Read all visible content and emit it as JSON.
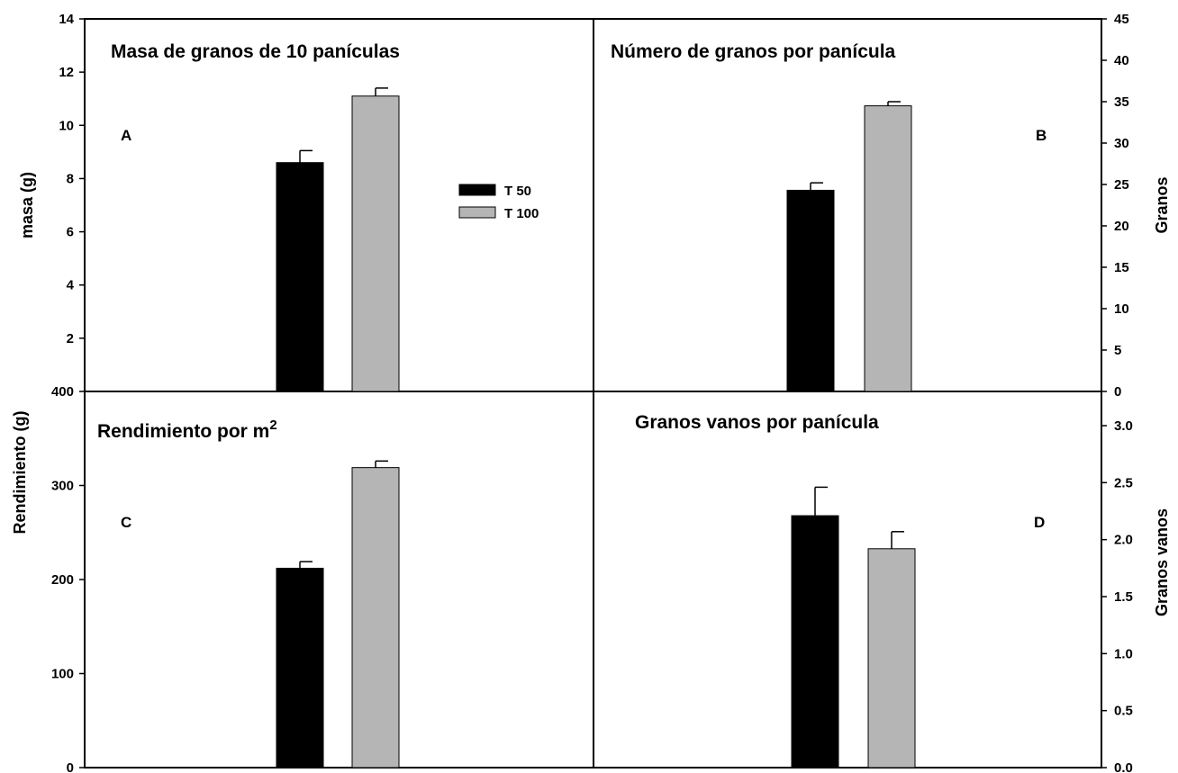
{
  "legend": {
    "items": [
      {
        "label": "T 50",
        "color": "#000000"
      },
      {
        "label": "T 100",
        "color": "#b5b5b5"
      }
    ]
  },
  "chart_data": [
    {
      "type": "bar",
      "panel": "A",
      "title": "Masa de granos de 10 panículas",
      "ylabel": "masa (g)",
      "ylim": [
        0,
        14
      ],
      "yticks": [
        2,
        4,
        6,
        8,
        10,
        12,
        14
      ],
      "ytick_labels": [
        "2",
        "4",
        "6",
        "8",
        "10",
        "12",
        "14"
      ],
      "series": [
        {
          "name": "T 50",
          "value": 8.6,
          "error": 0.45,
          "color": "#000000"
        },
        {
          "name": "T 100",
          "value": 11.1,
          "error": 0.3,
          "color": "#b5b5b5"
        }
      ]
    },
    {
      "type": "bar",
      "panel": "B",
      "title": "Número de granos por panícula",
      "ylabel": "Granos",
      "ylim": [
        0,
        45
      ],
      "yticks": [
        0,
        5,
        10,
        15,
        20,
        25,
        30,
        35,
        40,
        45
      ],
      "ytick_labels": [
        "0",
        "5",
        "10",
        "15",
        "20",
        "25",
        "30",
        "35",
        "40",
        "45"
      ],
      "series": [
        {
          "name": "T 50",
          "value": 24.3,
          "error": 0.9,
          "color": "#000000"
        },
        {
          "name": "T 100",
          "value": 34.5,
          "error": 0.5,
          "color": "#b5b5b5"
        }
      ]
    },
    {
      "type": "bar",
      "panel": "C",
      "title": "Rendimiento por m",
      "title_superscript": "2",
      "ylabel": "Rendimiento (g)",
      "ylim": [
        0,
        400
      ],
      "yticks": [
        0,
        100,
        200,
        300,
        400
      ],
      "ytick_labels": [
        "0",
        "100",
        "200",
        "300",
        "400"
      ],
      "series": [
        {
          "name": "T 50",
          "value": 212,
          "error": 7,
          "color": "#000000"
        },
        {
          "name": "T 100",
          "value": 319,
          "error": 7,
          "color": "#b5b5b5"
        }
      ]
    },
    {
      "type": "bar",
      "panel": "D",
      "title": "Granos vanos por panícula",
      "ylabel": "Granos vanos",
      "ylim": [
        0,
        3.3
      ],
      "yticks": [
        0,
        0.5,
        1.0,
        1.5,
        2.0,
        2.5,
        3.0
      ],
      "ytick_labels": [
        "0.0",
        "0.5",
        "1.0",
        "1.5",
        "2.0",
        "2.5",
        "3.0"
      ],
      "series": [
        {
          "name": "T 50",
          "value": 2.21,
          "error": 0.25,
          "color": "#000000"
        },
        {
          "name": "T 100",
          "value": 1.92,
          "error": 0.15,
          "color": "#b5b5b5"
        }
      ]
    }
  ]
}
